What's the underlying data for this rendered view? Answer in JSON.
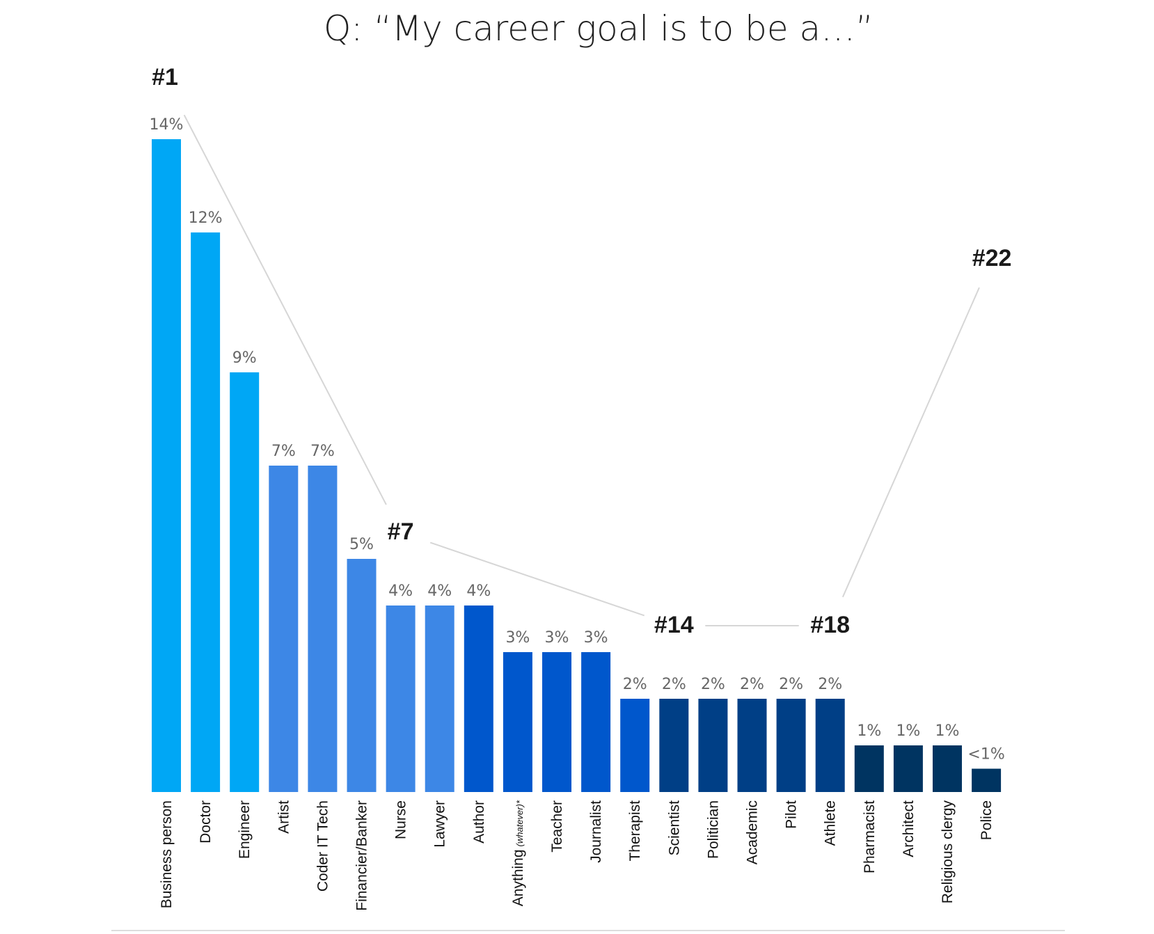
{
  "chart_data": {
    "type": "bar",
    "title": "Q:   “My career goal is to be a…”",
    "xlabel": "",
    "ylabel": "",
    "ylim": [
      0,
      14
    ],
    "grid": false,
    "legend": "none",
    "categories": [
      "Business person",
      "Doctor",
      "Engineer",
      "Artist",
      "Coder IT Tech",
      "Financier/Banker",
      "Nurse",
      "Lawyer",
      "Author",
      "Anything",
      "Teacher",
      "Journalist",
      "Therapist",
      "Scientist",
      "Politician",
      "Academic",
      "Pilot",
      "Athlete",
      "Pharmacist",
      "Architect",
      "Religious clergy",
      "Police"
    ],
    "category_notes": [
      "",
      "",
      "",
      "",
      "",
      "",
      "",
      "",
      "",
      "(whatever)*",
      "",
      "",
      "",
      "",
      "",
      "",
      "",
      "",
      "",
      "",
      "",
      ""
    ],
    "values": [
      14,
      12,
      9,
      7,
      7,
      5,
      4,
      4,
      4,
      3,
      3,
      3,
      2,
      2,
      2,
      2,
      2,
      2,
      1,
      1,
      1,
      0.5
    ],
    "value_labels": [
      "14%",
      "12%",
      "9%",
      "7%",
      "7%",
      "5%",
      "4%",
      "4%",
      "4%",
      "3%",
      "3%",
      "3%",
      "2%",
      "2%",
      "2%",
      "2%",
      "2%",
      "2%",
      "1%",
      "1%",
      "1%",
      "<1%"
    ],
    "bar_colors": [
      "#00a7f5",
      "#00a7f5",
      "#00a7f5",
      "#3d87e6",
      "#3d87e6",
      "#3d87e6",
      "#3d87e6",
      "#3d87e6",
      "#0057cc",
      "#0057cc",
      "#0057cc",
      "#0057cc",
      "#0057cc",
      "#003f86",
      "#003f86",
      "#003f86",
      "#003f86",
      "#003f86",
      "#003461",
      "#003461",
      "#003461",
      "#003461"
    ],
    "annotations": [
      {
        "text": "#1",
        "category_index": 0
      },
      {
        "text": "#7",
        "category_index": 6
      },
      {
        "text": "#14",
        "category_index": 13
      },
      {
        "text": "#18",
        "category_index": 17
      },
      {
        "text": "#22",
        "category_index": 21
      }
    ]
  }
}
